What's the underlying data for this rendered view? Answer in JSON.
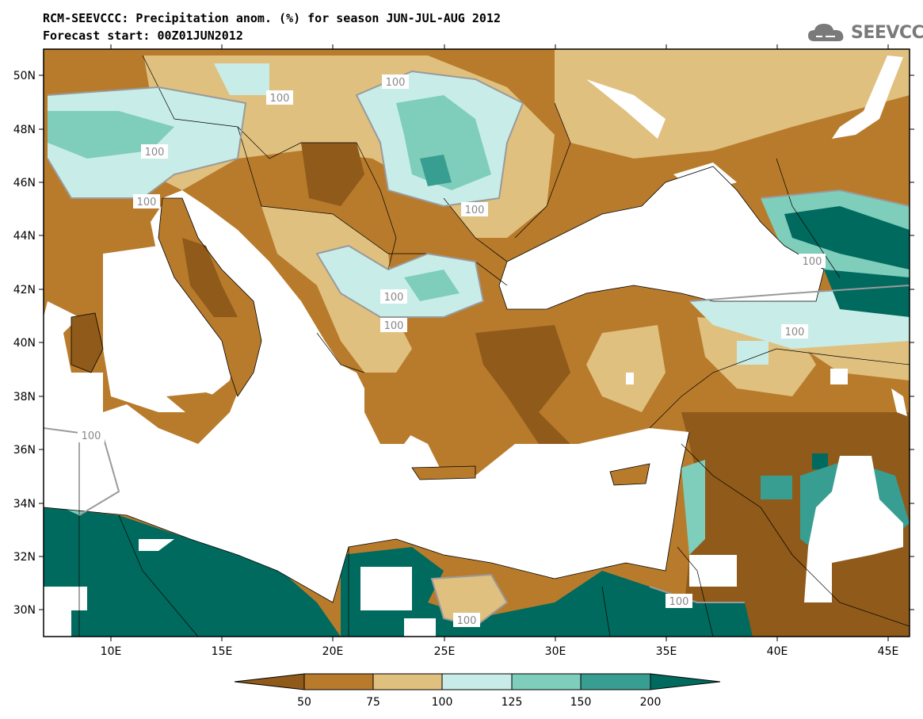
{
  "header": {
    "title_line1": "RCM-SEEVCCC: Precipitation anom. (%) for season JUN-JUL-AUG 2012",
    "title_line2": "Forecast start: 00Z01JUN2012"
  },
  "logo": {
    "text": "SEEVCCC",
    "icon": "cloud-icon"
  },
  "map": {
    "lat_ticks": [
      "50N",
      "48N",
      "46N",
      "44N",
      "42N",
      "40N",
      "38N",
      "36N",
      "34N",
      "32N",
      "30N"
    ],
    "lon_ticks": [
      "10E",
      "15E",
      "20E",
      "25E",
      "30E",
      "35E",
      "40E",
      "45E"
    ],
    "contour_labels": [
      "100",
      "100",
      "100",
      "100",
      "100",
      "100",
      "100",
      "100",
      "100",
      "100",
      "100",
      "100"
    ]
  },
  "colorbar": {
    "bin_colors": [
      "#8f5a1a",
      "#b87b2c",
      "#dfc07f",
      "#c8ede8",
      "#7fcdbb",
      "#389e91",
      "#006a5e"
    ],
    "labels": [
      "50",
      "75",
      "100",
      "125",
      "150",
      "200"
    ]
  },
  "colors": {
    "sea": "#ffffff",
    "dry_strong": "#8f5a1a",
    "dry": "#b87b2c",
    "dry_light": "#dfc07f",
    "wet_light": "#c8ede8",
    "wet": "#7fcdbb",
    "wet_strong": "#389e91",
    "wet_extreme": "#006a5e"
  }
}
